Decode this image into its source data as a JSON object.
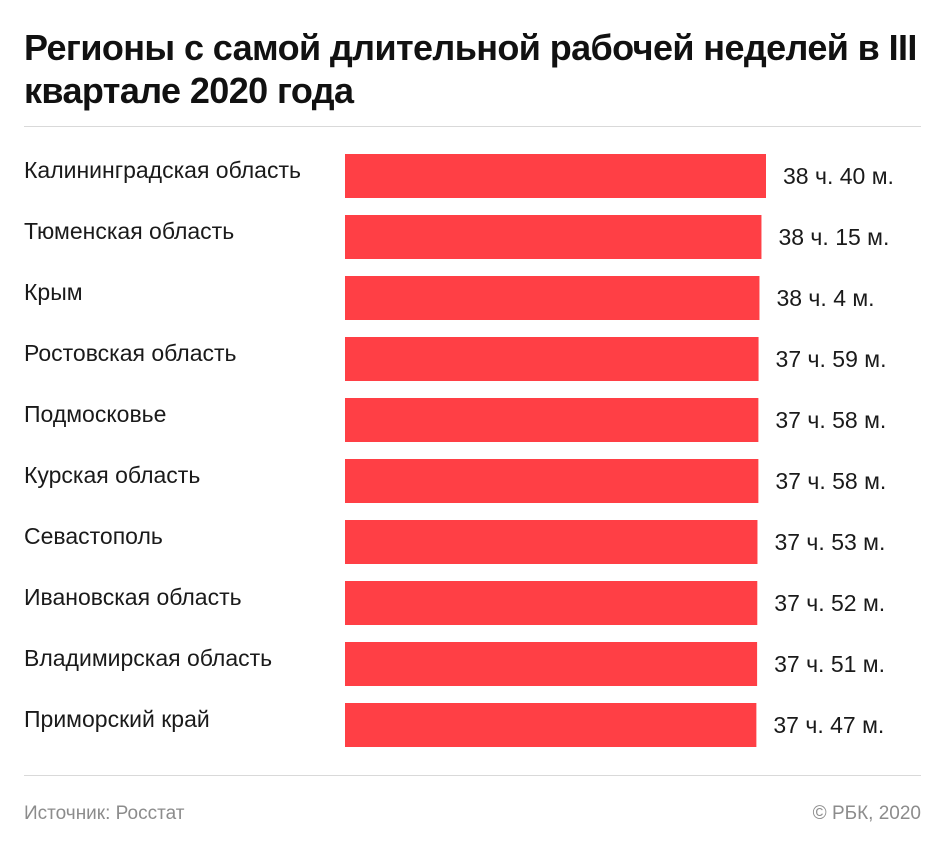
{
  "header": {
    "title": "Регионы с самой длительной рабочей неделей в III квартале 2020 года"
  },
  "footer": {
    "source": "Источник: Росстат",
    "credit": "© РБК, 2020"
  },
  "chart_data": {
    "type": "bar",
    "orientation": "horizontal",
    "bar_color": "#ff3f45",
    "title": "Регионы с самой длительной рабочей неделей в III квартале 2020 года",
    "unit": "hours",
    "categories": [
      "Калининградская область",
      "Тюменская область",
      "Крым",
      "Ростовская область",
      "Подмосковье",
      "Курская область",
      "Севастополь",
      "Ивановская область",
      "Владимирская область",
      "Приморский край"
    ],
    "values": [
      38.667,
      38.25,
      38.067,
      37.983,
      37.967,
      37.967,
      37.883,
      37.867,
      37.85,
      37.783
    ],
    "value_labels": [
      "38 ч. 40 м.",
      "38 ч. 15 м.",
      "38 ч. 4 м.",
      "37 ч. 59 м.",
      "37 ч. 58 м.",
      "37 ч. 58 м.",
      "37 ч. 53 м.",
      "37 ч. 52 м.",
      "37 ч. 51 м.",
      "37 ч. 47 м."
    ],
    "grid": false
  }
}
